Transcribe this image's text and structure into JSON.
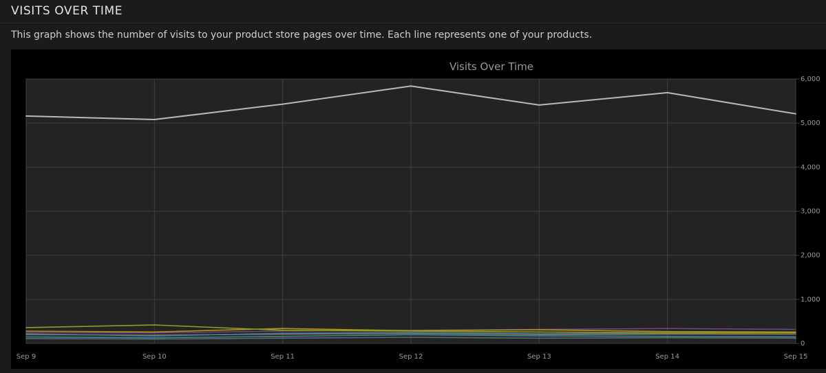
{
  "header": {
    "title": "VISITS OVER TIME",
    "description": "This graph shows the number of visits to your product store pages over time. Each line represents one of your products."
  },
  "colors": {
    "page_background": "#1b1b1b",
    "panel_background": "#000000",
    "plot_background": "#232323",
    "grid": "#3f3f3f",
    "axis_text": "#9a9a9a",
    "chart_title": "#9a9a9a"
  },
  "chart_data": {
    "type": "line",
    "title": "Visits Over Time",
    "xlabel": "",
    "ylabel": "",
    "categories": [
      "Sep 9",
      "Sep 10",
      "Sep 11",
      "Sep 12",
      "Sep 13",
      "Sep 14",
      "Sep 15"
    ],
    "y_ticks": [
      "0",
      "1,000",
      "2,000",
      "3,000",
      "4,000",
      "5,000",
      "6,000"
    ],
    "ylim": [
      0,
      6000
    ],
    "y_axis_side": "right",
    "grid": true,
    "legend": "none",
    "series": [
      {
        "color": "#b8b8c2",
        "values": [
          5160,
          5080,
          5430,
          5840,
          5410,
          5690,
          5210
        ]
      },
      {
        "color": "#8aa01e",
        "values": [
          360,
          420,
          300,
          280,
          260,
          240,
          240
        ]
      },
      {
        "color": "#b8901e",
        "values": [
          280,
          260,
          340,
          290,
          310,
          270,
          260
        ]
      },
      {
        "color": "#6a4a7a",
        "values": [
          250,
          240,
          280,
          300,
          320,
          340,
          320
        ]
      },
      {
        "color": "#4a7a9a",
        "values": [
          220,
          170,
          230,
          250,
          220,
          230,
          240
        ]
      },
      {
        "color": "#8a6a6a",
        "values": [
          200,
          190,
          210,
          230,
          200,
          210,
          210
        ]
      },
      {
        "color": "#3a8a8a",
        "values": [
          150,
          130,
          160,
          200,
          170,
          160,
          150
        ]
      },
      {
        "color": "#5a6a7a",
        "values": [
          110,
          100,
          120,
          140,
          120,
          130,
          120
        ]
      }
    ]
  }
}
